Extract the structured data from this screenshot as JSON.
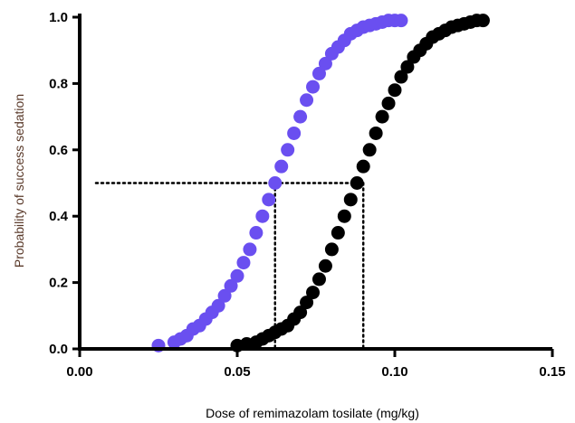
{
  "chart_data": {
    "type": "scatter",
    "xlabel": "Dose of remimazolam tosilate (mg/kg)",
    "ylabel": "Probability of success sedation",
    "xlim": [
      0.0,
      0.15
    ],
    "ylim": [
      0.0,
      1.0
    ],
    "x_ticks": [
      "0.00",
      "0.05",
      "0.10",
      "0.15"
    ],
    "y_ticks": [
      "0.0",
      "0.2",
      "0.4",
      "0.6",
      "0.8",
      "1.0"
    ],
    "grid": false,
    "legend": "none",
    "series": [
      {
        "color": "#6a4ff0",
        "x": [
          0.025,
          0.03,
          0.032,
          0.034,
          0.036,
          0.038,
          0.04,
          0.042,
          0.044,
          0.046,
          0.048,
          0.05,
          0.052,
          0.054,
          0.056,
          0.058,
          0.06,
          0.062,
          0.064,
          0.066,
          0.068,
          0.07,
          0.072,
          0.074,
          0.076,
          0.078,
          0.08,
          0.082,
          0.084,
          0.086,
          0.088,
          0.09,
          0.092,
          0.094,
          0.096,
          0.098,
          0.1,
          0.102
        ],
        "y": [
          0.01,
          0.02,
          0.03,
          0.04,
          0.06,
          0.07,
          0.09,
          0.11,
          0.13,
          0.16,
          0.19,
          0.22,
          0.26,
          0.3,
          0.35,
          0.4,
          0.45,
          0.5,
          0.55,
          0.6,
          0.65,
          0.7,
          0.75,
          0.79,
          0.83,
          0.86,
          0.89,
          0.91,
          0.93,
          0.95,
          0.96,
          0.97,
          0.975,
          0.98,
          0.985,
          0.99,
          0.99,
          0.99
        ]
      },
      {
        "color": "#000000",
        "x": [
          0.05,
          0.053,
          0.056,
          0.058,
          0.06,
          0.062,
          0.064,
          0.066,
          0.068,
          0.07,
          0.072,
          0.074,
          0.076,
          0.078,
          0.08,
          0.082,
          0.084,
          0.086,
          0.088,
          0.09,
          0.092,
          0.094,
          0.096,
          0.098,
          0.1,
          0.102,
          0.104,
          0.106,
          0.108,
          0.11,
          0.112,
          0.114,
          0.116,
          0.118,
          0.12,
          0.122,
          0.124,
          0.126,
          0.128
        ],
        "y": [
          0.01,
          0.015,
          0.02,
          0.03,
          0.04,
          0.05,
          0.06,
          0.07,
          0.09,
          0.11,
          0.14,
          0.17,
          0.21,
          0.25,
          0.3,
          0.35,
          0.4,
          0.45,
          0.5,
          0.55,
          0.6,
          0.65,
          0.7,
          0.74,
          0.78,
          0.82,
          0.85,
          0.88,
          0.9,
          0.92,
          0.94,
          0.95,
          0.96,
          0.97,
          0.975,
          0.98,
          0.985,
          0.99,
          0.99
        ]
      }
    ],
    "reference_lines": {
      "y_level": 0.5,
      "x_values": [
        0.062,
        0.09
      ]
    }
  }
}
